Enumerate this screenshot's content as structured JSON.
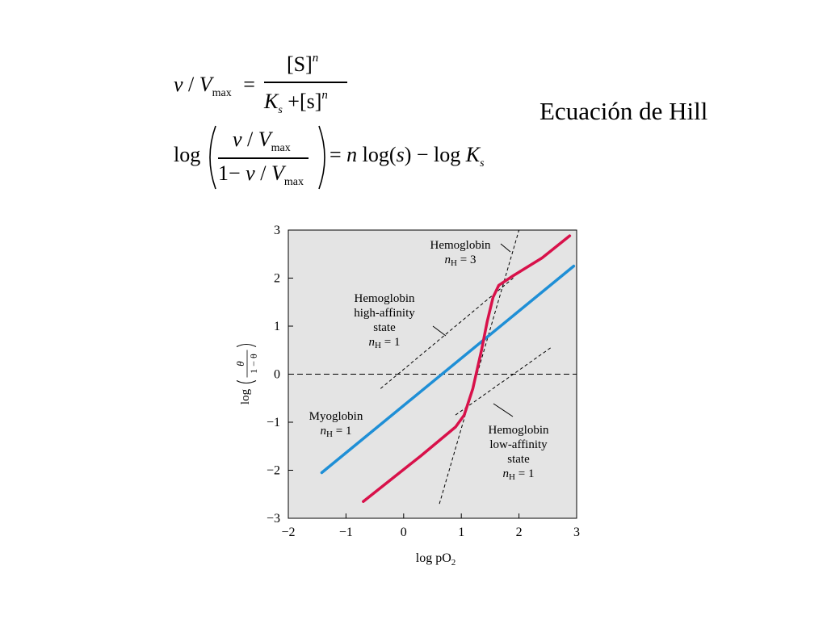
{
  "slide": {
    "title": "Ecuación de Hill",
    "eq1": {
      "lhs_v": "v",
      "slash": "/",
      "lhs_V": "V",
      "lhs_sub": "max",
      "eq": "=",
      "num": "[S]",
      "num_sup": "n",
      "den_K": "K",
      "den_K_sub": "s",
      "den_plus": "+",
      "den_s": "[s]",
      "den_sup": "n"
    },
    "eq2": {
      "log": "log",
      "num_v": "v",
      "num_slash": "/",
      "num_V": "V",
      "num_sub": "max",
      "den_1": "1",
      "den_minus": "−",
      "den_v": "v",
      "den_slash": "/",
      "den_V": "V",
      "den_sub": "max",
      "rhs_eq": "=",
      "rhs_n": "n",
      "rhs_log": "log(",
      "rhs_s": "s",
      "rhs_close": ")",
      "rhs_minus": "−",
      "rhs_log2": "log",
      "rhs_K": "K",
      "rhs_K_sub": "s"
    }
  },
  "chart_data": {
    "type": "line",
    "xlabel": "log pO",
    "xlabel_sub": "2",
    "ylabel_parts": {
      "log": "log",
      "num": "θ",
      "den": "1 − θ"
    },
    "xlim": [
      -2,
      3
    ],
    "ylim": [
      -3,
      3
    ],
    "xticks": [
      "−2",
      "−1",
      "0",
      "1",
      "2",
      "3"
    ],
    "yticks": [
      "3",
      "2",
      "1",
      "0",
      "−1",
      "−2",
      "−3"
    ],
    "grid": false,
    "background": "#e4e4e4",
    "series": [
      {
        "name": "Myoglobin",
        "color": "#1f8fd6",
        "x": [
          -1.42,
          2.95
        ],
        "y": [
          -2.05,
          2.25
        ]
      },
      {
        "name": "Hemoglobin",
        "color": "#d8114a",
        "x": [
          -0.7,
          0.3,
          0.9,
          1.05,
          1.2,
          1.35,
          1.45,
          1.55,
          1.65,
          1.9,
          2.4,
          2.88
        ],
        "y": [
          -2.65,
          -1.7,
          -1.1,
          -0.85,
          -0.3,
          0.5,
          1.1,
          1.6,
          1.85,
          2.05,
          2.42,
          2.88
        ]
      }
    ],
    "reference_lines": [
      {
        "name": "zero",
        "x": [
          -2,
          3
        ],
        "y": [
          0,
          0
        ]
      },
      {
        "name": "high-affinity",
        "x": [
          -0.4,
          1.9
        ],
        "y": [
          -0.3,
          2.0
        ]
      },
      {
        "name": "low-affinity",
        "x": [
          0.9,
          2.55
        ],
        "y": [
          -0.85,
          0.55
        ]
      },
      {
        "name": "nH3",
        "x": [
          0.62,
          2.0
        ],
        "y": [
          -2.7,
          3.0
        ]
      }
    ],
    "annotations": [
      {
        "id": "hb",
        "lines": [
          "Hemoglobin",
          "n_H = 3"
        ]
      },
      {
        "id": "high",
        "lines": [
          "Hemoglobin",
          "high-affinity",
          "state",
          "n_H = 1"
        ]
      },
      {
        "id": "myo",
        "lines": [
          "Myoglobin",
          "n_H = 1"
        ]
      },
      {
        "id": "low",
        "lines": [
          "Hemoglobin",
          "low-affinity",
          "state",
          "n_H = 1"
        ]
      }
    ]
  }
}
